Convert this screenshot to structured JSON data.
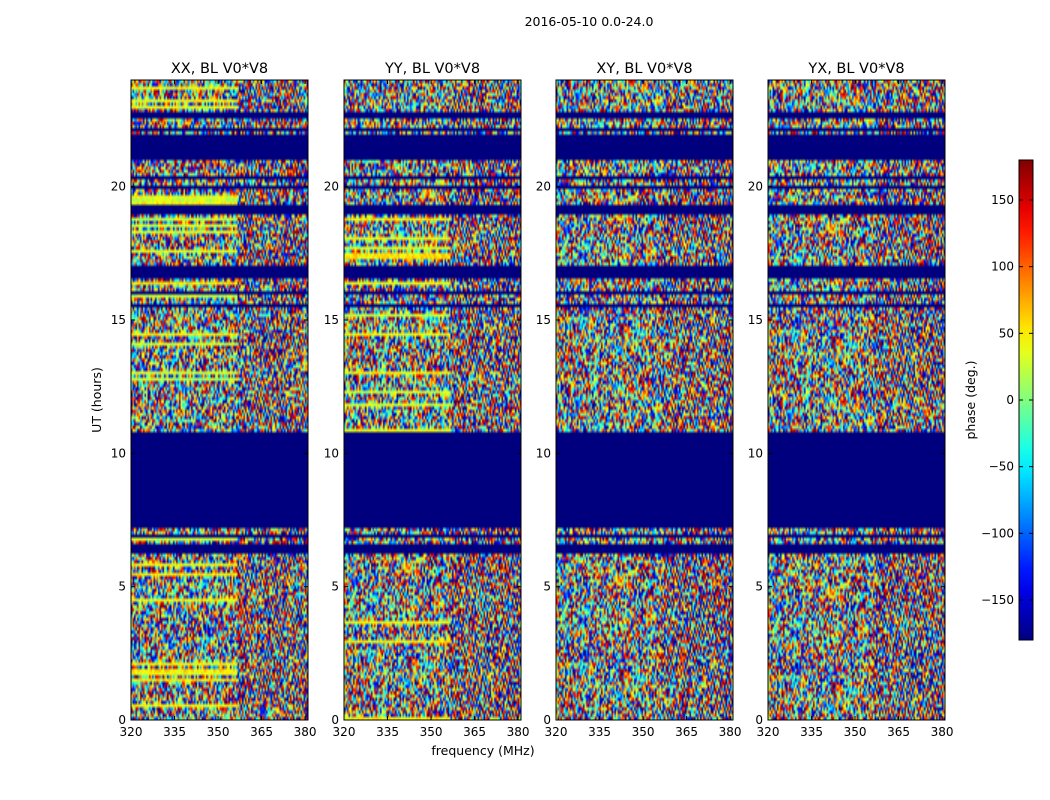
{
  "figure": {
    "suptitle": "2016-05-10 0.0-24.0"
  },
  "chart_data": {
    "type": "heatmap",
    "xlabel": "frequency (MHz)",
    "ylabel": "UT (hours)",
    "xlim": [
      320,
      381
    ],
    "ylim": [
      0,
      24
    ],
    "xticks": [
      320,
      335,
      350,
      365,
      380
    ],
    "yticks": [
      0,
      5,
      10,
      15,
      20
    ],
    "panels": [
      {
        "title": "XX, BL V0*V8",
        "pol": "XX"
      },
      {
        "title": "YY, BL V0*V8",
        "pol": "YY"
      },
      {
        "title": "XY, BL V0*V8",
        "pol": "XY"
      },
      {
        "title": "YX, BL V0*V8",
        "pol": "YX"
      }
    ],
    "colorbar": {
      "label": "phase (deg.)",
      "colormap": "jet",
      "vmin": -180,
      "vmax": 180,
      "ticks": [
        -150,
        -100,
        -50,
        0,
        50,
        100,
        150
      ],
      "tick_labels": [
        "−150",
        "−100",
        "−50",
        "0",
        "50",
        "100",
        "150"
      ]
    },
    "flagged_ut_ranges": [
      [
        6.2,
        6.55
      ],
      [
        6.85,
        6.95
      ],
      [
        7.25,
        10.75
      ],
      [
        15.45,
        15.65
      ],
      [
        15.95,
        16.05
      ],
      [
        16.55,
        17.05
      ],
      [
        18.95,
        19.35
      ],
      [
        19.95,
        20.05
      ],
      [
        20.25,
        20.35
      ],
      [
        20.95,
        21.9
      ],
      [
        22.05,
        22.15
      ],
      [
        22.55,
        22.85
      ],
      [
        23.4,
        23.45
      ]
    ],
    "flag_color": "#00007f"
  }
}
